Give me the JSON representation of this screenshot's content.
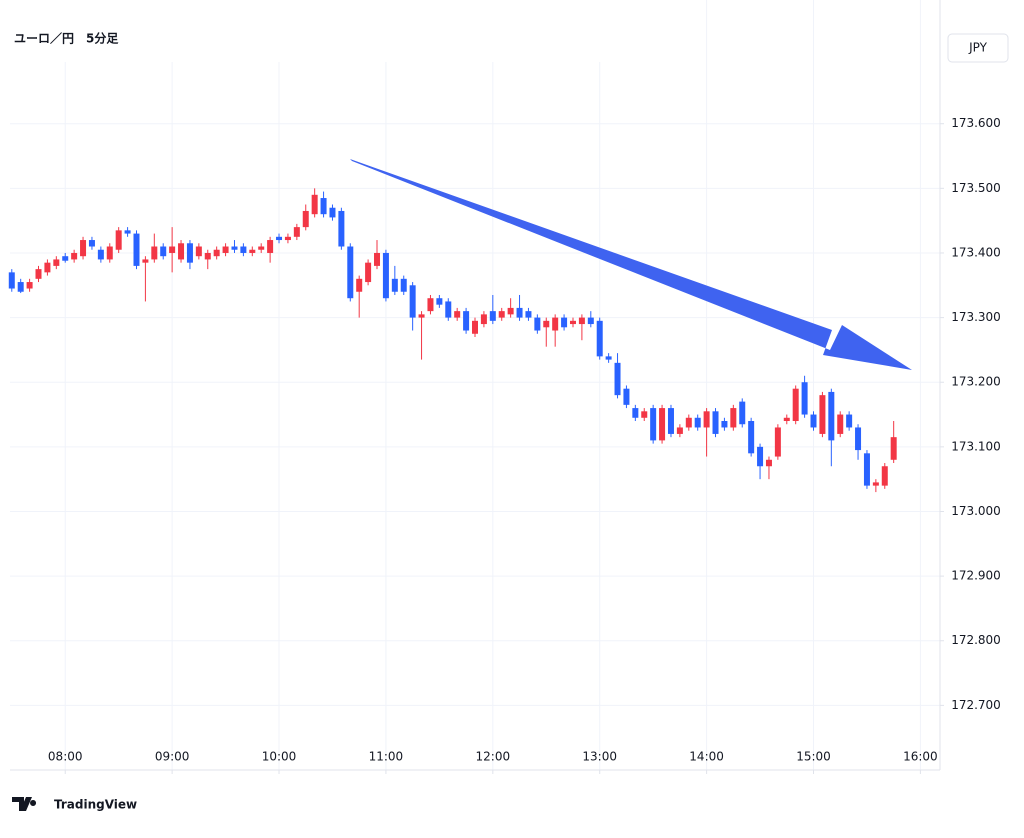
{
  "chart_data": {
    "type": "candlestick",
    "title": "ユーロ／円　5分足",
    "currency": "JPY",
    "brand": "TradingView",
    "up_color": "#f23645",
    "down_color": "#2962ff",
    "grid": true,
    "ylim": [
      172.6,
      173.745
    ],
    "yticks": [
      {
        "value": 172.7,
        "label": "172.700"
      },
      {
        "value": 172.8,
        "label": "172.800"
      },
      {
        "value": 172.9,
        "label": "172.900"
      },
      {
        "value": 173.0,
        "label": "173.000"
      },
      {
        "value": 173.1,
        "label": "173.100"
      },
      {
        "value": 173.2,
        "label": "173.200"
      },
      {
        "value": 173.3,
        "label": "173.300"
      },
      {
        "value": 173.4,
        "label": "173.400"
      },
      {
        "value": 173.5,
        "label": "173.500"
      },
      {
        "value": 173.6,
        "label": "173.600"
      }
    ],
    "xlim": [
      "07:29",
      "16:11"
    ],
    "xticks": [
      "08:00",
      "09:00",
      "10:00",
      "11:00",
      "12:00",
      "13:00",
      "14:00",
      "15:00",
      "16:00"
    ],
    "x": [
      "07:30",
      "07:35",
      "07:40",
      "07:45",
      "07:50",
      "07:55",
      "08:00",
      "08:05",
      "08:10",
      "08:15",
      "08:20",
      "08:25",
      "08:30",
      "08:35",
      "08:40",
      "08:45",
      "08:50",
      "08:55",
      "09:00",
      "09:05",
      "09:10",
      "09:15",
      "09:20",
      "09:25",
      "09:30",
      "09:35",
      "09:40",
      "09:45",
      "09:50",
      "09:55",
      "10:00",
      "10:05",
      "10:10",
      "10:15",
      "10:20",
      "10:25",
      "10:30",
      "10:35",
      "10:40",
      "10:45",
      "10:50",
      "10:55",
      "11:00",
      "11:05",
      "11:10",
      "11:15",
      "11:20",
      "11:25",
      "11:30",
      "11:35",
      "11:40",
      "11:45",
      "11:50",
      "11:55",
      "12:00",
      "12:05",
      "12:10",
      "12:15",
      "12:20",
      "12:25",
      "12:30",
      "12:35",
      "12:40",
      "12:45",
      "12:50",
      "12:55",
      "13:00",
      "13:05",
      "13:10",
      "13:15",
      "13:20",
      "13:25",
      "13:30",
      "13:35",
      "13:40",
      "13:45",
      "13:50",
      "13:55",
      "14:00",
      "14:05",
      "14:10",
      "14:15",
      "14:20",
      "14:25",
      "14:30",
      "14:35",
      "14:40",
      "14:45",
      "14:50",
      "14:55",
      "15:00",
      "15:05",
      "15:10",
      "15:15",
      "15:20",
      "15:25",
      "15:30",
      "15:35",
      "15:40",
      "15:45"
    ],
    "ohlc": [
      [
        173.37,
        173.375,
        173.34,
        173.345
      ],
      [
        173.355,
        173.36,
        173.338,
        173.34
      ],
      [
        173.345,
        173.36,
        173.34,
        173.355
      ],
      [
        173.36,
        173.38,
        173.355,
        173.375
      ],
      [
        173.37,
        173.39,
        173.365,
        173.385
      ],
      [
        173.38,
        173.395,
        173.375,
        173.39
      ],
      [
        173.395,
        173.4,
        173.385,
        173.388
      ],
      [
        173.39,
        173.405,
        173.385,
        173.4
      ],
      [
        173.395,
        173.425,
        173.39,
        173.42
      ],
      [
        173.42,
        173.425,
        173.405,
        173.41
      ],
      [
        173.405,
        173.41,
        173.385,
        173.39
      ],
      [
        173.39,
        173.415,
        173.385,
        173.41
      ],
      [
        173.405,
        173.44,
        173.4,
        173.435
      ],
      [
        173.435,
        173.44,
        173.425,
        173.43
      ],
      [
        173.43,
        173.435,
        173.375,
        173.38
      ],
      [
        173.385,
        173.395,
        173.325,
        173.39
      ],
      [
        173.39,
        173.43,
        173.385,
        173.41
      ],
      [
        173.41,
        173.415,
        173.39,
        173.395
      ],
      [
        173.4,
        173.44,
        173.37,
        173.41
      ],
      [
        173.39,
        173.42,
        173.385,
        173.415
      ],
      [
        173.415,
        173.42,
        173.375,
        173.385
      ],
      [
        173.395,
        173.415,
        173.39,
        173.41
      ],
      [
        173.39,
        173.405,
        173.375,
        173.4
      ],
      [
        173.395,
        173.41,
        173.39,
        173.405
      ],
      [
        173.4,
        173.415,
        173.395,
        173.41
      ],
      [
        173.41,
        173.42,
        173.4,
        173.405
      ],
      [
        173.41,
        173.415,
        173.395,
        173.4
      ],
      [
        173.4,
        173.41,
        173.395,
        173.405
      ],
      [
        173.405,
        173.415,
        173.4,
        173.41
      ],
      [
        173.4,
        173.425,
        173.385,
        173.42
      ],
      [
        173.425,
        173.43,
        173.415,
        173.42
      ],
      [
        173.42,
        173.43,
        173.415,
        173.425
      ],
      [
        173.425,
        173.445,
        173.42,
        173.44
      ],
      [
        173.44,
        173.475,
        173.435,
        173.465
      ],
      [
        173.46,
        173.5,
        173.455,
        173.49
      ],
      [
        173.485,
        173.495,
        173.455,
        173.46
      ],
      [
        173.47,
        173.475,
        173.45,
        173.455
      ],
      [
        173.465,
        173.47,
        173.405,
        173.41
      ],
      [
        173.41,
        173.415,
        173.325,
        173.33
      ],
      [
        173.34,
        173.365,
        173.3,
        173.36
      ],
      [
        173.355,
        173.39,
        173.35,
        173.385
      ],
      [
        173.38,
        173.42,
        173.375,
        173.4
      ],
      [
        173.4,
        173.405,
        173.325,
        173.33
      ],
      [
        173.36,
        173.38,
        173.335,
        173.34
      ],
      [
        173.36,
        173.365,
        173.335,
        173.34
      ],
      [
        173.35,
        173.355,
        173.28,
        173.3
      ],
      [
        173.3,
        173.31,
        173.235,
        173.305
      ],
      [
        173.31,
        173.335,
        173.305,
        173.33
      ],
      [
        173.33,
        173.335,
        173.315,
        173.32
      ],
      [
        173.325,
        173.33,
        173.295,
        173.3
      ],
      [
        173.3,
        173.315,
        173.295,
        173.31
      ],
      [
        173.31,
        173.315,
        173.275,
        173.28
      ],
      [
        173.275,
        173.3,
        173.27,
        173.295
      ],
      [
        173.29,
        173.31,
        173.285,
        173.305
      ],
      [
        173.31,
        173.335,
        173.29,
        173.295
      ],
      [
        173.3,
        173.315,
        173.295,
        173.31
      ],
      [
        173.305,
        173.33,
        173.3,
        173.315
      ],
      [
        173.315,
        173.335,
        173.295,
        173.3
      ],
      [
        173.31,
        173.315,
        173.295,
        173.3
      ],
      [
        173.3,
        173.305,
        173.275,
        173.28
      ],
      [
        173.285,
        173.3,
        173.255,
        173.295
      ],
      [
        173.28,
        173.305,
        173.255,
        173.3
      ],
      [
        173.3,
        173.305,
        173.28,
        173.285
      ],
      [
        173.29,
        173.3,
        173.285,
        173.295
      ],
      [
        173.29,
        173.305,
        173.265,
        173.3
      ],
      [
        173.3,
        173.31,
        173.285,
        173.29
      ],
      [
        173.295,
        173.3,
        173.235,
        173.24
      ],
      [
        173.24,
        173.245,
        173.23,
        173.235
      ],
      [
        173.23,
        173.245,
        173.175,
        173.18
      ],
      [
        173.19,
        173.195,
        173.16,
        173.165
      ],
      [
        173.16,
        173.165,
        173.14,
        173.145
      ],
      [
        173.145,
        173.16,
        173.14,
        173.155
      ],
      [
        173.16,
        173.165,
        173.105,
        173.11
      ],
      [
        173.11,
        173.165,
        173.105,
        173.16
      ],
      [
        173.16,
        173.165,
        173.115,
        173.12
      ],
      [
        173.12,
        173.135,
        173.115,
        173.13
      ],
      [
        173.13,
        173.15,
        173.125,
        173.145
      ],
      [
        173.145,
        173.15,
        173.125,
        173.13
      ],
      [
        173.13,
        173.16,
        173.085,
        173.155
      ],
      [
        173.155,
        173.16,
        173.115,
        173.12
      ],
      [
        173.14,
        173.145,
        173.125,
        173.13
      ],
      [
        173.13,
        173.165,
        173.125,
        173.16
      ],
      [
        173.17,
        173.175,
        173.13,
        173.135
      ],
      [
        173.14,
        173.145,
        173.085,
        173.09
      ],
      [
        173.1,
        173.105,
        173.05,
        173.07
      ],
      [
        173.07,
        173.085,
        173.05,
        173.08
      ],
      [
        173.085,
        173.135,
        173.08,
        173.13
      ],
      [
        173.14,
        173.15,
        173.135,
        173.145
      ],
      [
        173.14,
        173.195,
        173.135,
        173.19
      ],
      [
        173.2,
        173.21,
        173.145,
        173.15
      ],
      [
        173.15,
        173.155,
        173.125,
        173.13
      ],
      [
        173.12,
        173.185,
        173.115,
        173.18
      ],
      [
        173.185,
        173.19,
        173.07,
        173.11
      ],
      [
        173.12,
        173.155,
        173.115,
        173.15
      ],
      [
        173.15,
        173.155,
        173.125,
        173.13
      ],
      [
        173.13,
        173.135,
        173.08,
        173.095
      ],
      [
        173.09,
        173.095,
        173.035,
        173.04
      ],
      [
        173.04,
        173.05,
        173.03,
        173.045
      ],
      [
        173.04,
        173.075,
        173.035,
        173.07
      ],
      [
        173.08,
        173.14,
        173.075,
        173.115
      ]
    ]
  }
}
